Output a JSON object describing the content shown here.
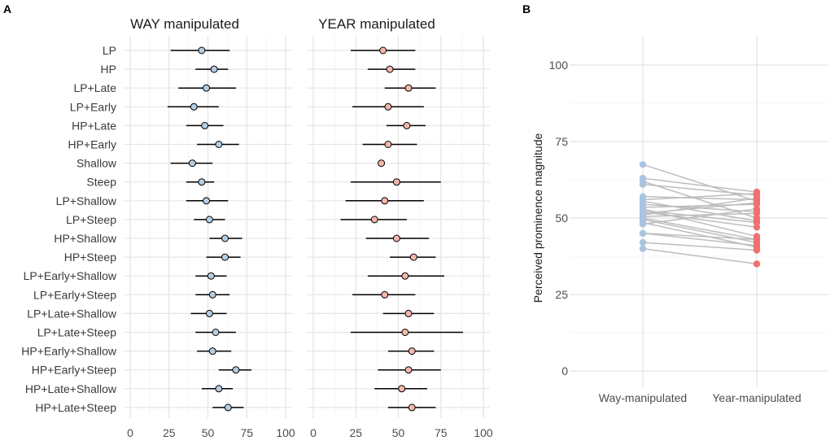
{
  "figure": {
    "panels": [
      "A",
      "B"
    ]
  },
  "colors": {
    "way": "#b3cde3",
    "year": "#f4b6ac",
    "way_line": "#a8c5e0",
    "year_line": "#f07070",
    "grid": "#e6e6e6",
    "slope_line": "#bdbdbd",
    "text": "#3c3c3c"
  },
  "chart_data": [
    {
      "type": "scatter",
      "panel": "A",
      "title_left": "WAY manipulated",
      "title_right": "YEAR manipulated",
      "x_ticks": [
        "0",
        "25",
        "50",
        "75",
        "100"
      ],
      "xlim": [
        0,
        100
      ],
      "conditions": [
        "LP",
        "HP",
        "LP+Late",
        "LP+Early",
        "HP+Late",
        "HP+Early",
        "Shallow",
        "Steep",
        "LP+Shallow",
        "LP+Steep",
        "HP+Shallow",
        "HP+Steep",
        "LP+Early+Shallow",
        "LP+Early+Steep",
        "LP+Late+Shallow",
        "LP+Late+Steep",
        "HP+Early+Shallow",
        "HP+Early+Steep",
        "HP+Late+Shallow",
        "HP+Late+Steep"
      ],
      "series": [
        {
          "name": "WAY manipulated",
          "mean": [
            46,
            54,
            49,
            41,
            48,
            57,
            40,
            46,
            49,
            51,
            61,
            61,
            52,
            53,
            51,
            55,
            53,
            68,
            57,
            63
          ],
          "lower": [
            26,
            42,
            31,
            24,
            36,
            43,
            26,
            36,
            36,
            41,
            51,
            49,
            42,
            42,
            39,
            42,
            43,
            57,
            46,
            53
          ],
          "upper": [
            64,
            63,
            68,
            57,
            60,
            70,
            53,
            54,
            63,
            61,
            72,
            71,
            62,
            64,
            62,
            68,
            65,
            78,
            66,
            73
          ]
        },
        {
          "name": "YEAR manipulated",
          "mean": [
            41,
            45,
            56,
            44,
            55,
            44,
            40,
            49,
            42,
            36,
            49,
            59,
            54,
            42,
            56,
            54,
            58,
            56,
            52,
            58
          ],
          "lower": [
            22,
            32,
            42,
            23,
            43,
            29,
            40,
            22,
            19,
            16,
            31,
            45,
            32,
            23,
            41,
            22,
            44,
            38,
            36,
            44
          ],
          "upper": [
            60,
            60,
            72,
            65,
            66,
            61,
            40,
            75,
            65,
            55,
            68,
            72,
            77,
            60,
            71,
            88,
            71,
            75,
            67,
            72
          ]
        }
      ]
    },
    {
      "type": "line",
      "panel": "B",
      "ylabel": "Perceived prominence magnitude",
      "categories": [
        "Way-manipulated",
        "Year-manipulated"
      ],
      "y_ticks": [
        "0",
        "25",
        "50",
        "75",
        "100"
      ],
      "ylim": [
        0,
        100
      ],
      "pairs": [
        [
          67.5,
          55.5
        ],
        [
          63,
          58.5
        ],
        [
          62,
          50
        ],
        [
          61,
          57.5
        ],
        [
          57,
          56
        ],
        [
          56,
          58
        ],
        [
          55.5,
          49
        ],
        [
          54.5,
          52
        ],
        [
          53.5,
          54.5
        ],
        [
          53,
          44
        ],
        [
          52.5,
          48.5
        ],
        [
          52,
          47
        ],
        [
          51.5,
          55
        ],
        [
          51,
          56.5
        ],
        [
          50.5,
          51.5
        ],
        [
          50,
          43
        ],
        [
          49.5,
          42
        ],
        [
          48.5,
          40.5
        ],
        [
          48,
          53
        ],
        [
          45,
          41
        ],
        [
          42,
          39.5
        ],
        [
          40,
          35
        ],
        [
          45,
          43
        ]
      ]
    }
  ]
}
